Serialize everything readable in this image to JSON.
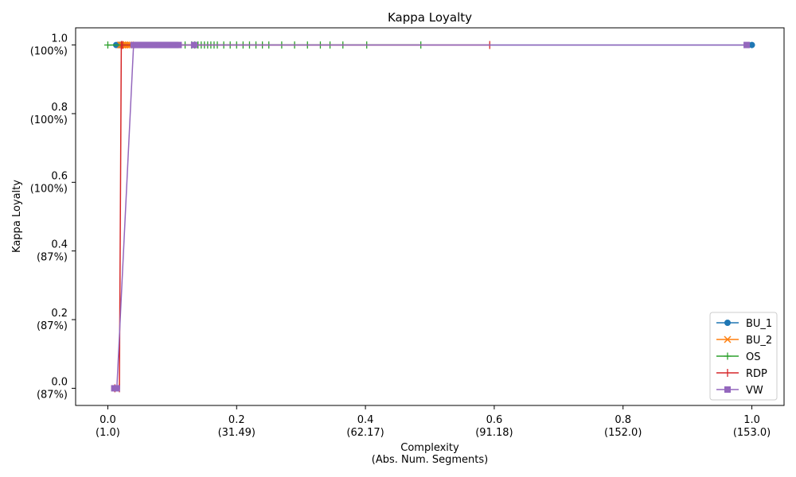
{
  "chart_data": {
    "type": "line",
    "title": "Kappa Loyalty",
    "xlabel_lines": [
      "Complexity",
      "(Abs. Num. Segments)"
    ],
    "ylabel": "Kappa Loyalty",
    "xlim": [
      -0.05,
      1.05
    ],
    "ylim": [
      -0.05,
      1.05
    ],
    "x_ticks": [
      {
        "value": 0.0,
        "lines": [
          "0.0",
          "(1.0)"
        ]
      },
      {
        "value": 0.2,
        "lines": [
          "0.2",
          "(31.49)"
        ]
      },
      {
        "value": 0.4,
        "lines": [
          "0.4",
          "(62.17)"
        ]
      },
      {
        "value": 0.6,
        "lines": [
          "0.6",
          "(91.18)"
        ]
      },
      {
        "value": 0.8,
        "lines": [
          "0.8",
          "(152.0)"
        ]
      },
      {
        "value": 1.0,
        "lines": [
          "1.0",
          "(153.0)"
        ]
      }
    ],
    "y_ticks": [
      {
        "value": 0.0,
        "lines": [
          "0.0",
          "(87%)"
        ]
      },
      {
        "value": 0.2,
        "lines": [
          "0.2",
          "(87%)"
        ]
      },
      {
        "value": 0.4,
        "lines": [
          "0.4",
          "(87%)"
        ]
      },
      {
        "value": 0.6,
        "lines": [
          "0.6",
          "(100%)"
        ]
      },
      {
        "value": 0.8,
        "lines": [
          "0.8",
          "(100%)"
        ]
      },
      {
        "value": 1.0,
        "lines": [
          "1.0",
          "(100%)"
        ]
      }
    ],
    "grid": false,
    "legend_position": "bottom-right",
    "series": [
      {
        "name": "BU_1",
        "color": "#1f77b4",
        "marker": "circle",
        "x": [
          0.013,
          0.016,
          0.019,
          0.022,
          1.0
        ],
        "y": [
          1.0,
          1.0,
          1.0,
          1.0,
          1.0
        ]
      },
      {
        "name": "BU_2",
        "color": "#ff7f0e",
        "marker": "x",
        "x": [
          0.02,
          0.023,
          0.026,
          0.029,
          0.032,
          0.035
        ],
        "y": [
          1.0,
          1.0,
          1.0,
          1.0,
          1.0,
          1.0
        ]
      },
      {
        "name": "OS",
        "color": "#2ca02c",
        "marker": "plus",
        "x": [
          0.0,
          0.12,
          0.13,
          0.135,
          0.14,
          0.145,
          0.15,
          0.155,
          0.16,
          0.165,
          0.17,
          0.18,
          0.19,
          0.2,
          0.21,
          0.22,
          0.23,
          0.24,
          0.25,
          0.27,
          0.29,
          0.31,
          0.33,
          0.345,
          0.365,
          0.402,
          0.486
        ],
        "y": [
          1.0,
          1.0,
          1.0,
          1.0,
          1.0,
          1.0,
          1.0,
          1.0,
          1.0,
          1.0,
          1.0,
          1.0,
          1.0,
          1.0,
          1.0,
          1.0,
          1.0,
          1.0,
          1.0,
          1.0,
          1.0,
          1.0,
          1.0,
          1.0,
          1.0,
          1.0,
          1.0
        ]
      },
      {
        "name": "RDP",
        "color": "#d62728",
        "marker": "pipe",
        "x": [
          0.011,
          0.018,
          0.021,
          0.023,
          0.593
        ],
        "y": [
          0.0,
          0.0,
          1.0,
          1.0,
          1.0
        ]
      },
      {
        "name": "VW",
        "color": "#9467bd",
        "marker": "square",
        "x": [
          0.01,
          0.014,
          0.04,
          0.045,
          0.05,
          0.055,
          0.06,
          0.065,
          0.07,
          0.075,
          0.08,
          0.085,
          0.09,
          0.095,
          0.1,
          0.105,
          0.11,
          0.134,
          0.992
        ],
        "y": [
          0.0,
          0.0,
          1.0,
          1.0,
          1.0,
          1.0,
          1.0,
          1.0,
          1.0,
          1.0,
          1.0,
          1.0,
          1.0,
          1.0,
          1.0,
          1.0,
          1.0,
          1.0,
          1.0
        ]
      }
    ]
  }
}
